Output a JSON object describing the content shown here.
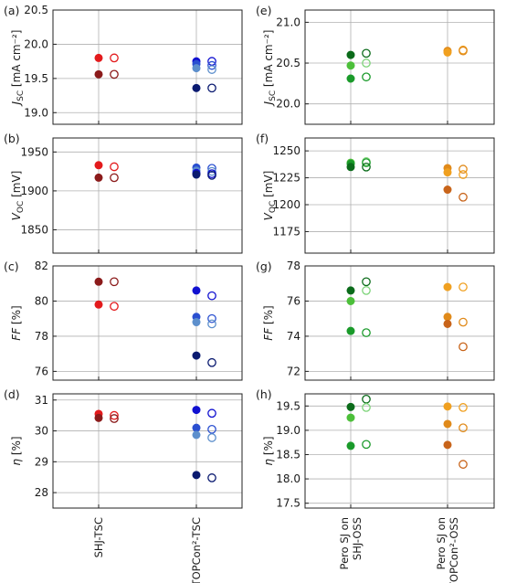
{
  "chart_data": [
    {
      "type": "scatter",
      "panel_label": "(a)",
      "ylabel_main": "J",
      "ylabel_sub": "SC",
      "ylabel_unit": " [mA cm⁻²]",
      "ylim": [
        18.83,
        20.5
      ],
      "yticks": [
        "20.5",
        "20.0",
        "19.5",
        "19.0"
      ],
      "ytick_values": [
        20.5,
        20.0,
        19.5,
        19.0
      ],
      "points": [
        {
          "x": 0,
          "y": 19.8,
          "color": "#e31a1c",
          "open": false
        },
        {
          "x": 0,
          "y": 19.56,
          "color": "#8b1a1a",
          "open": false
        },
        {
          "x": 0.3,
          "y": 19.8,
          "color": "#e31a1c",
          "open": true
        },
        {
          "x": 0.3,
          "y": 19.56,
          "color": "#8b1a1a",
          "open": true
        },
        {
          "x": 1,
          "y": 19.75,
          "color": "#1010d0",
          "open": false
        },
        {
          "x": 1,
          "y": 19.71,
          "color": "#2a4fd0",
          "open": false
        },
        {
          "x": 1,
          "y": 19.65,
          "color": "#5d8fcc",
          "open": false
        },
        {
          "x": 1,
          "y": 19.36,
          "color": "#0a1a70",
          "open": false
        },
        {
          "x": 1.3,
          "y": 19.75,
          "color": "#1010d0",
          "open": true
        },
        {
          "x": 1.3,
          "y": 19.69,
          "color": "#2a4fd0",
          "open": true
        },
        {
          "x": 1.3,
          "y": 19.63,
          "color": "#5d8fcc",
          "open": true
        },
        {
          "x": 1.3,
          "y": 19.36,
          "color": "#0a1a70",
          "open": true
        }
      ]
    },
    {
      "type": "scatter",
      "panel_label": "(b)",
      "ylabel_main": "V",
      "ylabel_sub": "OC",
      "ylabel_unit": " [mV]",
      "ylim": [
        1820,
        1968
      ],
      "yticks": [
        "1950",
        "1900",
        "1850"
      ],
      "ytick_values": [
        1950,
        1900,
        1850
      ],
      "points": [
        {
          "x": 0,
          "y": 1933,
          "color": "#e31a1c",
          "open": false
        },
        {
          "x": 0,
          "y": 1917,
          "color": "#8b1a1a",
          "open": false
        },
        {
          "x": 0.3,
          "y": 1931,
          "color": "#e31a1c",
          "open": true
        },
        {
          "x": 0.3,
          "y": 1917,
          "color": "#8b1a1a",
          "open": true
        },
        {
          "x": 1,
          "y": 1930,
          "color": "#2a4fd0",
          "open": false
        },
        {
          "x": 1,
          "y": 1926,
          "color": "#5d8fcc",
          "open": false
        },
        {
          "x": 1,
          "y": 1923,
          "color": "#1010d0",
          "open": false
        },
        {
          "x": 1,
          "y": 1921,
          "color": "#0a1a70",
          "open": false
        },
        {
          "x": 1.3,
          "y": 1929,
          "color": "#2a4fd0",
          "open": true
        },
        {
          "x": 1.3,
          "y": 1925,
          "color": "#5d8fcc",
          "open": true
        },
        {
          "x": 1.3,
          "y": 1922,
          "color": "#1010d0",
          "open": true
        },
        {
          "x": 1.3,
          "y": 1920,
          "color": "#0a1a70",
          "open": true
        }
      ]
    },
    {
      "type": "scatter",
      "panel_label": "(c)",
      "ylabel_main": "FF",
      "ylabel_sub": "",
      "ylabel_unit": " [%]",
      "ylim": [
        75.5,
        82
      ],
      "yticks": [
        "82",
        "80",
        "78",
        "76"
      ],
      "ytick_values": [
        82,
        80,
        78,
        76
      ],
      "points": [
        {
          "x": 0,
          "y": 81.1,
          "color": "#8b1a1a",
          "open": false
        },
        {
          "x": 0,
          "y": 79.8,
          "color": "#e31a1c",
          "open": false
        },
        {
          "x": 0.3,
          "y": 81.1,
          "color": "#8b1a1a",
          "open": true
        },
        {
          "x": 0.3,
          "y": 79.7,
          "color": "#e31a1c",
          "open": true
        },
        {
          "x": 1,
          "y": 80.6,
          "color": "#1010d0",
          "open": false
        },
        {
          "x": 1,
          "y": 79.1,
          "color": "#2a4fd0",
          "open": false
        },
        {
          "x": 1,
          "y": 78.8,
          "color": "#5d8fcc",
          "open": false
        },
        {
          "x": 1,
          "y": 76.9,
          "color": "#0a1a70",
          "open": false
        },
        {
          "x": 1.3,
          "y": 80.3,
          "color": "#1010d0",
          "open": true
        },
        {
          "x": 1.3,
          "y": 79.0,
          "color": "#2a4fd0",
          "open": true
        },
        {
          "x": 1.3,
          "y": 78.7,
          "color": "#5d8fcc",
          "open": true
        },
        {
          "x": 1.3,
          "y": 76.5,
          "color": "#0a1a70",
          "open": true
        }
      ]
    },
    {
      "type": "scatter",
      "panel_label": "(d)",
      "ylabel_main": "η",
      "ylabel_sub": "",
      "ylabel_unit": " [%]",
      "ylim": [
        27.5,
        31.2
      ],
      "yticks": [
        "31",
        "30",
        "29",
        "28"
      ],
      "ytick_values": [
        31,
        30,
        29,
        28
      ],
      "points": [
        {
          "x": 0,
          "y": 30.55,
          "color": "#e31a1c",
          "open": false
        },
        {
          "x": 0,
          "y": 30.42,
          "color": "#8b1a1a",
          "open": false
        },
        {
          "x": 0.3,
          "y": 30.5,
          "color": "#e31a1c",
          "open": true
        },
        {
          "x": 0.3,
          "y": 30.4,
          "color": "#8b1a1a",
          "open": true
        },
        {
          "x": 1,
          "y": 30.68,
          "color": "#1010d0",
          "open": false
        },
        {
          "x": 1,
          "y": 30.1,
          "color": "#2a4fd0",
          "open": false
        },
        {
          "x": 1,
          "y": 29.87,
          "color": "#5d8fcc",
          "open": false
        },
        {
          "x": 1,
          "y": 28.57,
          "color": "#0a1a70",
          "open": false
        },
        {
          "x": 1.3,
          "y": 30.57,
          "color": "#1010d0",
          "open": true
        },
        {
          "x": 1.3,
          "y": 30.05,
          "color": "#2a4fd0",
          "open": true
        },
        {
          "x": 1.3,
          "y": 29.78,
          "color": "#5d8fcc",
          "open": true
        },
        {
          "x": 1.3,
          "y": 28.48,
          "color": "#0a1a70",
          "open": true
        }
      ]
    },
    {
      "type": "scatter",
      "panel_label": "(e)",
      "ylabel_main": "J",
      "ylabel_sub": "SC",
      "ylabel_unit": " [mA cm⁻²]",
      "ylim": [
        19.75,
        21.15
      ],
      "yticks": [
        "21.0",
        "20.5",
        "20.0"
      ],
      "ytick_values": [
        21.0,
        20.5,
        20.0
      ],
      "points": [
        {
          "x": 0,
          "y": 20.6,
          "color": "#0b6b1a",
          "open": false
        },
        {
          "x": 0,
          "y": 20.47,
          "color": "#4cbf3a",
          "open": false
        },
        {
          "x": 0,
          "y": 20.31,
          "color": "#1a9a2a",
          "open": false
        },
        {
          "x": 0.3,
          "y": 20.62,
          "color": "#0b6b1a",
          "open": true
        },
        {
          "x": 0.3,
          "y": 20.5,
          "color": "#7ed47a",
          "open": true
        },
        {
          "x": 0.3,
          "y": 20.33,
          "color": "#1a9a2a",
          "open": true
        },
        {
          "x": 1,
          "y": 20.65,
          "color": "#e08a1a",
          "open": false
        },
        {
          "x": 1,
          "y": 20.63,
          "color": "#f0a020",
          "open": false
        },
        {
          "x": 1.3,
          "y": 20.66,
          "color": "#f0a020",
          "open": true
        },
        {
          "x": 1.3,
          "y": 20.65,
          "color": "#e08a1a",
          "open": true
        }
      ]
    },
    {
      "type": "scatter",
      "panel_label": "(f)",
      "ylabel_main": "V",
      "ylabel_sub": "OC",
      "ylabel_unit": " [mV]",
      "ylim": [
        1155,
        1262
      ],
      "yticks": [
        "1250",
        "1225",
        "1200",
        "1175"
      ],
      "ytick_values": [
        1250,
        1225,
        1200,
        1175
      ],
      "points": [
        {
          "x": 0,
          "y": 1239,
          "color": "#4cbf3a",
          "open": false
        },
        {
          "x": 0,
          "y": 1238,
          "color": "#1a9a2a",
          "open": false
        },
        {
          "x": 0,
          "y": 1235,
          "color": "#0b6b1a",
          "open": false
        },
        {
          "x": 0.3,
          "y": 1240,
          "color": "#7ed47a",
          "open": true
        },
        {
          "x": 0.3,
          "y": 1239,
          "color": "#1a9a2a",
          "open": true
        },
        {
          "x": 0.3,
          "y": 1235,
          "color": "#0b6b1a",
          "open": true
        },
        {
          "x": 1,
          "y": 1234,
          "color": "#e08a1a",
          "open": false
        },
        {
          "x": 1,
          "y": 1230,
          "color": "#f0a020",
          "open": false
        },
        {
          "x": 1,
          "y": 1214,
          "color": "#c8641a",
          "open": false
        },
        {
          "x": 1.3,
          "y": 1233,
          "color": "#e08a1a",
          "open": true
        },
        {
          "x": 1.3,
          "y": 1228,
          "color": "#f0a020",
          "open": true
        },
        {
          "x": 1.3,
          "y": 1207,
          "color": "#c8641a",
          "open": true
        }
      ]
    },
    {
      "type": "scatter",
      "panel_label": "(g)",
      "ylabel_main": "FF",
      "ylabel_sub": "",
      "ylabel_unit": " [%]",
      "ylim": [
        71.5,
        78
      ],
      "yticks": [
        "78",
        "76",
        "74",
        "72"
      ],
      "ytick_values": [
        78,
        76,
        74,
        72
      ],
      "points": [
        {
          "x": 0,
          "y": 76.6,
          "color": "#0b6b1a",
          "open": false
        },
        {
          "x": 0,
          "y": 76.0,
          "color": "#4cbf3a",
          "open": false
        },
        {
          "x": 0,
          "y": 74.3,
          "color": "#1a9a2a",
          "open": false
        },
        {
          "x": 0.3,
          "y": 77.1,
          "color": "#0b6b1a",
          "open": true
        },
        {
          "x": 0.3,
          "y": 76.6,
          "color": "#7ed47a",
          "open": true
        },
        {
          "x": 0.3,
          "y": 74.2,
          "color": "#1a9a2a",
          "open": true
        },
        {
          "x": 1,
          "y": 76.8,
          "color": "#f0a020",
          "open": false
        },
        {
          "x": 1,
          "y": 75.1,
          "color": "#e08a1a",
          "open": false
        },
        {
          "x": 1,
          "y": 74.7,
          "color": "#c8641a",
          "open": false
        },
        {
          "x": 1.3,
          "y": 76.8,
          "color": "#f0a020",
          "open": true
        },
        {
          "x": 1.3,
          "y": 74.8,
          "color": "#e08a1a",
          "open": true
        },
        {
          "x": 1.3,
          "y": 73.4,
          "color": "#c8641a",
          "open": true
        }
      ]
    },
    {
      "type": "scatter",
      "panel_label": "(h)",
      "ylabel_main": "η",
      "ylabel_sub": "",
      "ylabel_unit": " [%]",
      "ylim": [
        17.4,
        19.75
      ],
      "yticks": [
        "19.5",
        "19.0",
        "18.5",
        "18.0",
        "17.5"
      ],
      "ytick_values": [
        19.5,
        19.0,
        18.5,
        18.0,
        17.5
      ],
      "points": [
        {
          "x": 0,
          "y": 19.48,
          "color": "#0b6b1a",
          "open": false
        },
        {
          "x": 0,
          "y": 19.26,
          "color": "#4cbf3a",
          "open": false
        },
        {
          "x": 0,
          "y": 18.68,
          "color": "#1a9a2a",
          "open": false
        },
        {
          "x": 0.3,
          "y": 19.64,
          "color": "#0b6b1a",
          "open": true
        },
        {
          "x": 0.3,
          "y": 19.47,
          "color": "#7ed47a",
          "open": true
        },
        {
          "x": 0.3,
          "y": 18.71,
          "color": "#1a9a2a",
          "open": true
        },
        {
          "x": 1,
          "y": 19.49,
          "color": "#f0a020",
          "open": false
        },
        {
          "x": 1,
          "y": 19.13,
          "color": "#e08a1a",
          "open": false
        },
        {
          "x": 1,
          "y": 18.7,
          "color": "#c8641a",
          "open": false
        },
        {
          "x": 1.3,
          "y": 19.47,
          "color": "#f0a020",
          "open": true
        },
        {
          "x": 1.3,
          "y": 19.05,
          "color": "#e08a1a",
          "open": true
        },
        {
          "x": 1.3,
          "y": 18.3,
          "color": "#c8641a",
          "open": true
        }
      ]
    }
  ],
  "categories_left": [
    [
      "SHJ-TSC"
    ],
    [
      "TOPCon²-TSC"
    ]
  ],
  "categories_right": [
    [
      "Pero SJ on",
      "SHJ-OSS"
    ],
    [
      "Pero SJ on",
      "TOPCon²-OSS"
    ]
  ]
}
